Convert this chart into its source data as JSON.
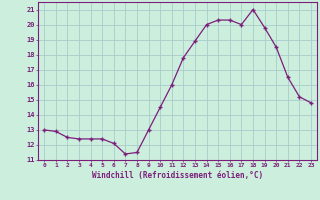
{
  "x": [
    0,
    1,
    2,
    3,
    4,
    5,
    6,
    7,
    8,
    9,
    10,
    11,
    12,
    13,
    14,
    15,
    16,
    17,
    18,
    19,
    20,
    21,
    22,
    23
  ],
  "y": [
    13,
    12.9,
    12.5,
    12.4,
    12.4,
    12.4,
    12.1,
    11.4,
    11.5,
    13,
    14.5,
    16,
    17.8,
    18.9,
    20,
    20.3,
    20.3,
    20,
    21,
    19.8,
    18.5,
    16.5,
    15.2,
    14.8
  ],
  "xlim": [
    -0.5,
    23.5
  ],
  "ylim": [
    11,
    21.5
  ],
  "yticks": [
    11,
    12,
    13,
    14,
    15,
    16,
    17,
    18,
    19,
    20,
    21
  ],
  "xticks": [
    0,
    1,
    2,
    3,
    4,
    5,
    6,
    7,
    8,
    9,
    10,
    11,
    12,
    13,
    14,
    15,
    16,
    17,
    18,
    19,
    20,
    21,
    22,
    23
  ],
  "xlabel": "Windchill (Refroidissement éolien,°C)",
  "line_color": "#7B1F7B",
  "marker_color": "#7B1F7B",
  "bg_color": "#cceedd",
  "grid_color": "#aacccc",
  "text_color": "#7B1F7B",
  "tick_color": "#7B1F7B",
  "spine_color": "#7B1F7B"
}
